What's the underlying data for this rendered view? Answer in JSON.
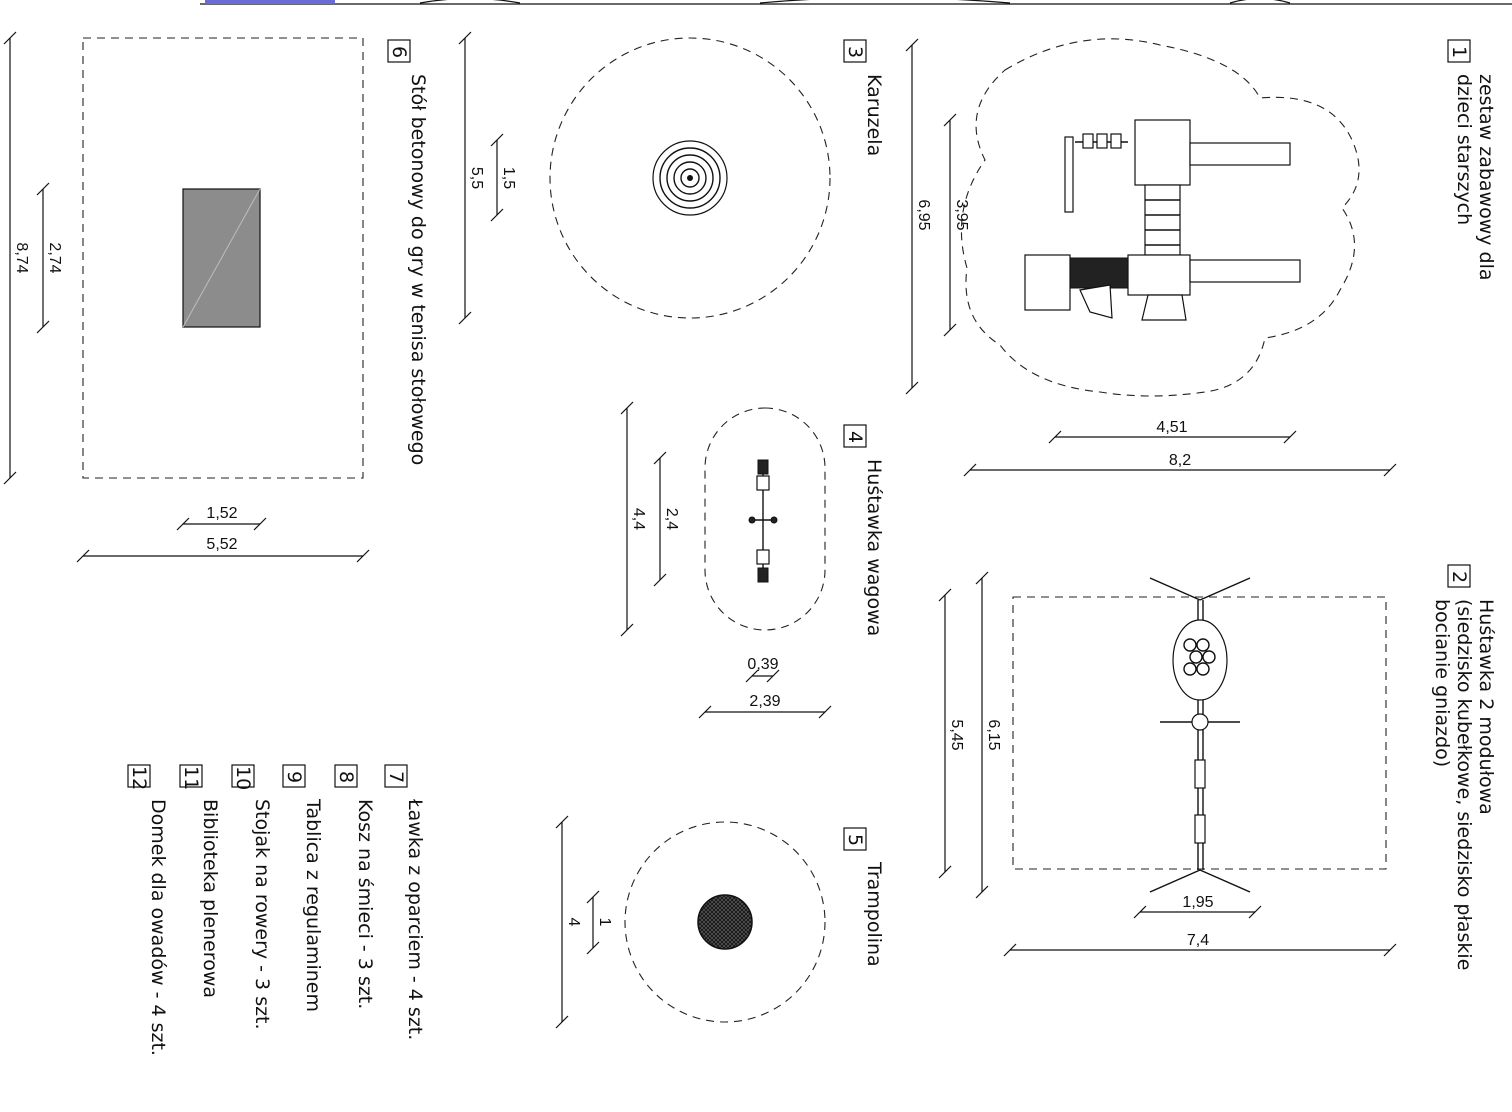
{
  "items": [
    {
      "number": "1",
      "label_line1": "zestaw zabawowy dla",
      "label_line2": "dzieci starszych",
      "dims": [
        "4,51",
        "8,2",
        "3,95",
        "6,95"
      ]
    },
    {
      "number": "2",
      "label_line1": "Huśtawka 2 modułowa",
      "label_line2": "(siedzisko kubełkowe, siedzisko płaskie",
      "label_line3": "bocianie gniazdo)",
      "dims": [
        "1,95",
        "7,4",
        "6,15",
        "5,45"
      ]
    },
    {
      "number": "3",
      "label": "Karuzela",
      "dims": [
        "1,5",
        "5,5"
      ]
    },
    {
      "number": "4",
      "label": "Huśtawka wagowa",
      "dims": [
        "0,39",
        "2,39",
        "2,4",
        "4,4"
      ]
    },
    {
      "number": "5",
      "label": "Trampolina",
      "dims": [
        "1",
        "4"
      ]
    },
    {
      "number": "6",
      "label": "Stół betonowy do gry w tenisa stołowego",
      "dims": [
        "1,52",
        "5,52",
        "2,74",
        "8,74"
      ]
    }
  ],
  "legend": [
    {
      "number": "7",
      "label": "Ławka z oparciem - 4 szt."
    },
    {
      "number": "8",
      "label": "Kosz na śmieci - 3 szt."
    },
    {
      "number": "9",
      "label": "Tablica z regulaminem"
    },
    {
      "number": "10",
      "label": "Stojak na rowery - 3 szt."
    },
    {
      "number": "11",
      "label": "Biblioteka plenerowa"
    },
    {
      "number": "12",
      "label": "Domek dla owadów - 4 szt."
    }
  ]
}
